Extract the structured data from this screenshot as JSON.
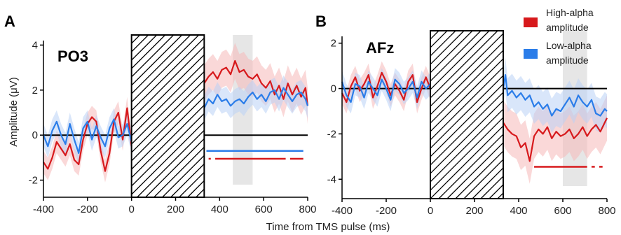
{
  "figure": {
    "xlabel": "Time from TMS pulse (ms)",
    "ylabel": "Amplitude (μV)"
  },
  "legend": {
    "placement": "top-right",
    "entries": [
      {
        "lines": [
          "High-alpha",
          "amplitude"
        ],
        "color": "#d7191c"
      },
      {
        "lines": [
          "Low-alpha",
          "amplitude"
        ],
        "color": "#2b7de9"
      }
    ]
  },
  "colors": {
    "high": "#d7191c",
    "low": "#2b7de9",
    "high_band": "#f5b8b8",
    "low_band": "#b9d2f5",
    "window": "#e6e6e6"
  },
  "chart_data": [
    {
      "type": "line",
      "panel": "A",
      "channel": "PO3",
      "xlim": [
        -400,
        800
      ],
      "ylim": [
        -2.2,
        4.2
      ],
      "xticks": [
        -400,
        -200,
        0,
        200,
        400,
        600,
        800
      ],
      "yticks": [
        -2,
        0,
        2,
        4
      ],
      "ytick_labels": [
        "-2",
        "0",
        "2",
        "4"
      ],
      "masked_interval": [
        0,
        330
      ],
      "highlight_window": [
        460,
        550
      ],
      "zero_line": 0,
      "series": [
        {
          "name": "High-alpha amplitude",
          "x": [
            -400,
            -380,
            -360,
            -340,
            -320,
            -300,
            -280,
            -260,
            -240,
            -220,
            -200,
            -180,
            -160,
            -140,
            -120,
            -100,
            -80,
            -60,
            -40,
            -20,
            0
          ],
          "y": [
            -1.2,
            -1.5,
            -1.0,
            -0.3,
            -0.6,
            -0.9,
            -0.4,
            -1.1,
            -1.3,
            -0.2,
            0.5,
            0.8,
            0.6,
            -0.7,
            -1.6,
            -0.8,
            0.6,
            1.0,
            -0.2,
            1.2,
            -0.5
          ],
          "band": 0.5
        },
        {
          "name": "Low-alpha amplitude",
          "x": [
            -400,
            -380,
            -360,
            -340,
            -320,
            -300,
            -280,
            -260,
            -240,
            -220,
            -200,
            -180,
            -160,
            -140,
            -120,
            -100,
            -80,
            -60,
            -40,
            -20,
            0
          ],
          "y": [
            0.0,
            -0.5,
            0.2,
            0.6,
            0.0,
            -0.4,
            0.5,
            -0.2,
            -0.8,
            0.3,
            0.6,
            -0.2,
            0.4,
            -0.1,
            -0.5,
            0.3,
            0.7,
            -0.1,
            0.0,
            0.5,
            -0.3
          ],
          "band": 0.5
        },
        {
          "name": "High-alpha amplitude",
          "x": [
            330,
            350,
            370,
            390,
            410,
            430,
            450,
            470,
            490,
            510,
            530,
            550,
            570,
            590,
            610,
            630,
            650,
            670,
            690,
            710,
            730,
            750,
            770,
            790,
            800
          ],
          "y": [
            2.3,
            2.6,
            2.8,
            2.5,
            2.9,
            3.0,
            2.7,
            3.3,
            2.8,
            2.9,
            2.6,
            2.5,
            2.7,
            2.3,
            2.1,
            2.4,
            1.8,
            2.2,
            1.6,
            2.3,
            1.8,
            2.2,
            1.7,
            2.1,
            1.3
          ],
          "band": 0.8
        },
        {
          "name": "Low-alpha amplitude",
          "x": [
            330,
            350,
            370,
            390,
            410,
            430,
            450,
            470,
            490,
            510,
            530,
            550,
            570,
            590,
            610,
            630,
            650,
            670,
            690,
            710,
            730,
            750,
            770,
            790,
            800
          ],
          "y": [
            1.2,
            1.6,
            1.4,
            1.8,
            1.5,
            1.6,
            1.3,
            1.5,
            1.6,
            1.4,
            1.7,
            1.9,
            1.6,
            1.8,
            1.5,
            1.9,
            2.0,
            1.6,
            2.1,
            1.8,
            1.5,
            1.8,
            1.9,
            1.6,
            1.3
          ],
          "band": 0.55
        }
      ],
      "significance": [
        {
          "color": "#2b7de9",
          "y": -0.7,
          "segments": [
            [
              340,
              780
            ]
          ]
        },
        {
          "color": "#d7191c",
          "y": -1.05,
          "segments": [
            [
              350,
              360
            ],
            [
              380,
              700
            ],
            [
              720,
              780
            ]
          ]
        }
      ]
    },
    {
      "type": "line",
      "panel": "B",
      "channel": "AFz",
      "xlim": [
        -400,
        800
      ],
      "ylim": [
        -4.3,
        2.3
      ],
      "xticks": [
        -400,
        -200,
        0,
        200,
        400,
        600,
        800
      ],
      "yticks": [
        -4,
        -2,
        0,
        2
      ],
      "ytick_labels": [
        "-4",
        "-2",
        "0",
        "2"
      ],
      "masked_interval": [
        0,
        330
      ],
      "highlight_window": [
        600,
        710
      ],
      "zero_line": 0,
      "series": [
        {
          "name": "High-alpha amplitude",
          "x": [
            -400,
            -380,
            -360,
            -340,
            -320,
            -300,
            -280,
            -260,
            -240,
            -220,
            -200,
            -180,
            -160,
            -140,
            -120,
            -100,
            -80,
            -60,
            -40,
            -20,
            0
          ],
          "y": [
            -0.2,
            -0.6,
            0.1,
            0.5,
            -0.1,
            0.2,
            0.6,
            -0.4,
            0.1,
            0.7,
            0.3,
            -0.3,
            0.2,
            -0.1,
            -0.5,
            0.3,
            0.6,
            -0.6,
            0.0,
            0.5,
            0.0
          ],
          "band": 0.5
        },
        {
          "name": "Low-alpha amplitude",
          "x": [
            -400,
            -380,
            -360,
            -340,
            -320,
            -300,
            -280,
            -260,
            -240,
            -220,
            -200,
            -180,
            -160,
            -140,
            -120,
            -100,
            -80,
            -60,
            -40,
            -20,
            0
          ],
          "y": [
            0.3,
            -0.3,
            -0.6,
            0.2,
            0.1,
            -0.4,
            0.3,
            0.0,
            -0.3,
            0.4,
            0.0,
            -0.5,
            0.4,
            0.2,
            -0.2,
            0.0,
            0.3,
            -0.4,
            0.3,
            0.0,
            0.2
          ],
          "band": 0.5
        },
        {
          "name": "High-alpha amplitude",
          "x": [
            330,
            350,
            370,
            390,
            410,
            430,
            450,
            470,
            490,
            510,
            530,
            550,
            570,
            590,
            610,
            630,
            650,
            670,
            690,
            710,
            730,
            750,
            770,
            790,
            800
          ],
          "y": [
            -1.5,
            -1.8,
            -2.0,
            -2.1,
            -2.6,
            -2.4,
            -3.2,
            -2.1,
            -1.8,
            -2.0,
            -1.7,
            -2.2,
            -1.9,
            -2.1,
            -2.0,
            -1.8,
            -2.2,
            -2.0,
            -1.7,
            -2.1,
            -1.8,
            -1.6,
            -1.9,
            -1.5,
            -1.3
          ],
          "band": 1.0
        },
        {
          "name": "Low-alpha amplitude",
          "x": [
            330,
            340,
            350,
            370,
            390,
            410,
            430,
            450,
            470,
            490,
            510,
            530,
            550,
            570,
            590,
            610,
            630,
            650,
            670,
            690,
            710,
            730,
            750,
            770,
            790,
            800
          ],
          "y": [
            0.0,
            0.6,
            -0.3,
            -0.1,
            -0.4,
            -0.2,
            -0.5,
            -0.3,
            -0.8,
            -0.6,
            -0.9,
            -0.7,
            -1.2,
            -0.9,
            -1.0,
            -0.7,
            -0.4,
            -0.8,
            -0.3,
            -0.6,
            -0.8,
            -0.5,
            -1.1,
            -1.2,
            -0.9,
            -1.0
          ],
          "band": 0.75
        }
      ],
      "significance": [
        {
          "color": "#d7191c",
          "y": -3.45,
          "segments": [
            [
              470,
              710
            ],
            [
              730,
              745
            ],
            [
              765,
              780
            ]
          ]
        }
      ]
    }
  ]
}
